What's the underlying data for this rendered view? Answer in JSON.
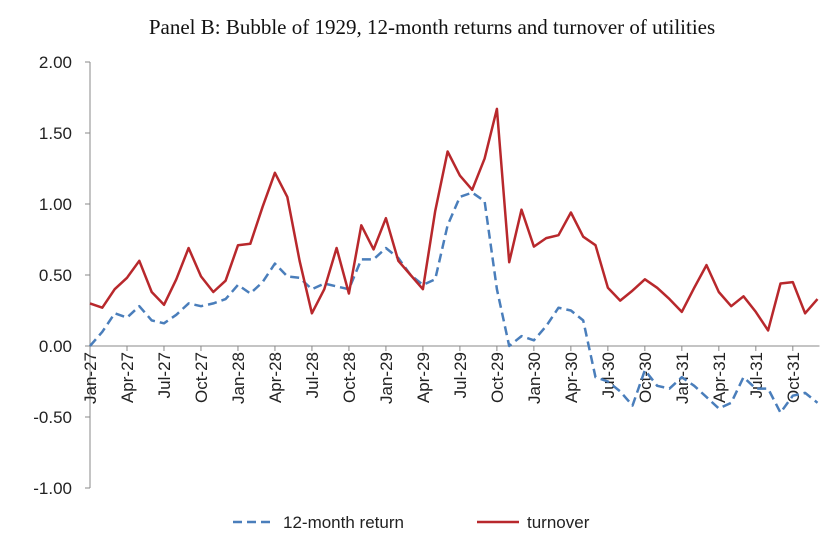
{
  "chart_data": {
    "type": "line",
    "title": "Panel B: Bubble of 1929, 12-month returns and turnover of utilities",
    "categories": [
      "Jan-27",
      null,
      null,
      "Apr-27",
      null,
      null,
      "Jul-27",
      null,
      null,
      "Oct-27",
      null,
      null,
      "Jan-28",
      null,
      null,
      "Apr-28",
      null,
      null,
      "Jul-28",
      null,
      null,
      "Oct-28",
      null,
      null,
      "Jan-29",
      null,
      null,
      "Apr-29",
      null,
      null,
      "Jul-29",
      null,
      null,
      "Oct-29",
      null,
      null,
      "Jan-30",
      null,
      null,
      "Apr-30",
      null,
      null,
      "Jul-30",
      null,
      null,
      "Oct-30",
      null,
      null,
      "Jan-31",
      null,
      null,
      "Apr-31",
      null,
      null,
      "Jul-31",
      null,
      null,
      "Oct-31",
      null,
      null
    ],
    "series": [
      {
        "name": "12-month return",
        "color": "#4a7ebb",
        "dashed": true,
        "values": [
          0.0,
          0.1,
          0.23,
          0.2,
          0.28,
          0.18,
          0.16,
          0.22,
          0.3,
          0.28,
          0.3,
          0.33,
          0.43,
          0.37,
          0.45,
          0.58,
          0.49,
          0.48,
          0.4,
          0.44,
          0.42,
          0.4,
          0.61,
          0.61,
          0.69,
          0.62,
          0.5,
          0.43,
          0.47,
          0.85,
          1.05,
          1.08,
          1.02,
          0.4,
          0.0,
          0.07,
          0.04,
          0.14,
          0.27,
          0.25,
          0.18,
          -0.22,
          -0.25,
          -0.32,
          -0.42,
          -0.17,
          -0.28,
          -0.3,
          -0.22,
          -0.28,
          -0.36,
          -0.44,
          -0.4,
          -0.22,
          -0.3,
          -0.3,
          -0.47,
          -0.35,
          -0.33,
          -0.4
        ]
      },
      {
        "name": "turnover",
        "color": "#b8282c",
        "dashed": false,
        "values": [
          0.3,
          0.27,
          0.4,
          0.48,
          0.6,
          0.38,
          0.29,
          0.47,
          0.69,
          0.49,
          0.38,
          0.46,
          0.71,
          0.72,
          0.98,
          1.22,
          1.05,
          0.6,
          0.23,
          0.4,
          0.69,
          0.37,
          0.85,
          0.68,
          0.9,
          0.6,
          0.5,
          0.4,
          0.95,
          1.37,
          1.2,
          1.1,
          1.32,
          1.67,
          0.59,
          0.96,
          0.7,
          0.76,
          0.78,
          0.94,
          0.77,
          0.71,
          0.41,
          0.32,
          0.39,
          0.47,
          0.41,
          0.33,
          0.24,
          0.41,
          0.57,
          0.38,
          0.28,
          0.35,
          0.24,
          0.11,
          0.44,
          0.45,
          0.23,
          0.33
        ]
      }
    ],
    "ylim": [
      -1,
      2
    ],
    "yticks": [
      {
        "value": -1,
        "label": "-1.00"
      },
      {
        "value": -0.5,
        "label": "-0.50"
      },
      {
        "value": 0,
        "label": "0.00"
      },
      {
        "value": 0.5,
        "label": "0.50"
      },
      {
        "value": 1,
        "label": "1.00"
      },
      {
        "value": 1.5,
        "label": "1.50"
      },
      {
        "value": 2,
        "label": "2.00"
      }
    ],
    "legend": "bottom"
  }
}
